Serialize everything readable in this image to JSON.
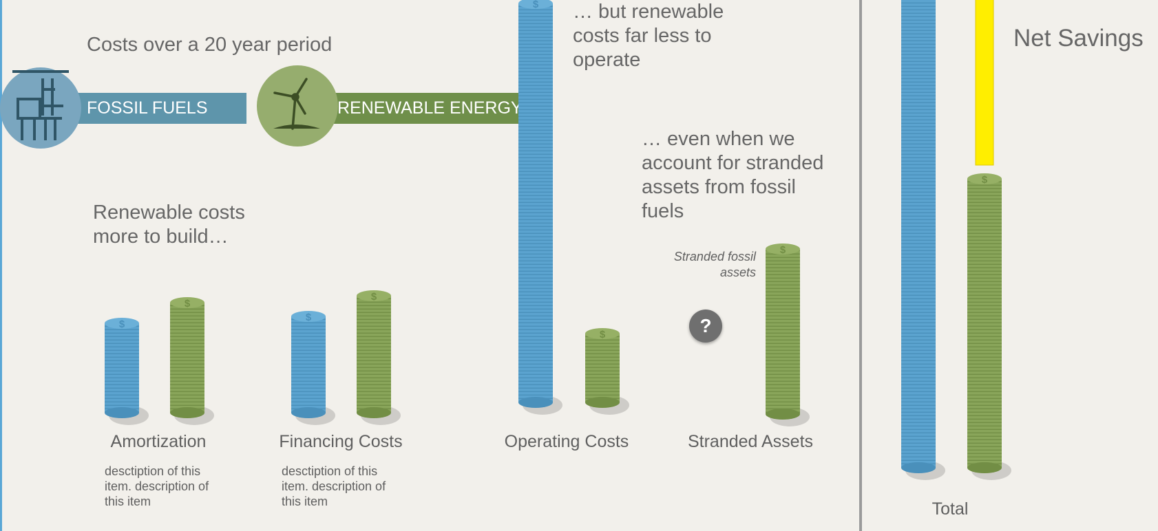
{
  "title": "Costs over a 20 year period",
  "legend": {
    "fossil": "FOSSIL FUELS",
    "renewable": "RENEWABLE ENERGY"
  },
  "colors": {
    "fossil": "#5ba3cf",
    "renewable": "#89a55a",
    "savings": "#ffee00",
    "fossil_legend": "#5e95ab",
    "renewable_legend": "#6f8f4a"
  },
  "annotations": {
    "build": "Renewable costs more to build…",
    "operate": "… but renewable costs far less to operate",
    "stranded": "… even when we account for stranded assets from fossil fuels",
    "stranded_note": "Stranded fossil assets",
    "net_savings": "Net Savings",
    "question": "?"
  },
  "descriptions": {
    "amortization": "desctiption of this item. description of this item",
    "financing": "desctiption of this item. description of this item"
  },
  "chart_data": {
    "type": "bar",
    "categories": [
      "Amortization",
      "Financing Costs",
      "Operating Costs",
      "Stranded Assets",
      "Total"
    ],
    "series": [
      {
        "name": "FOSSIL FUELS",
        "values": [
          13,
          14,
          58,
          0,
          71
        ]
      },
      {
        "name": "RENEWABLE ENERGY",
        "values": [
          16,
          17,
          10,
          24,
          42
        ]
      }
    ],
    "net_savings": 29,
    "icons": [
      "oil-rig-icon",
      "wind-turbine-icon",
      "dollar-icon"
    ]
  }
}
